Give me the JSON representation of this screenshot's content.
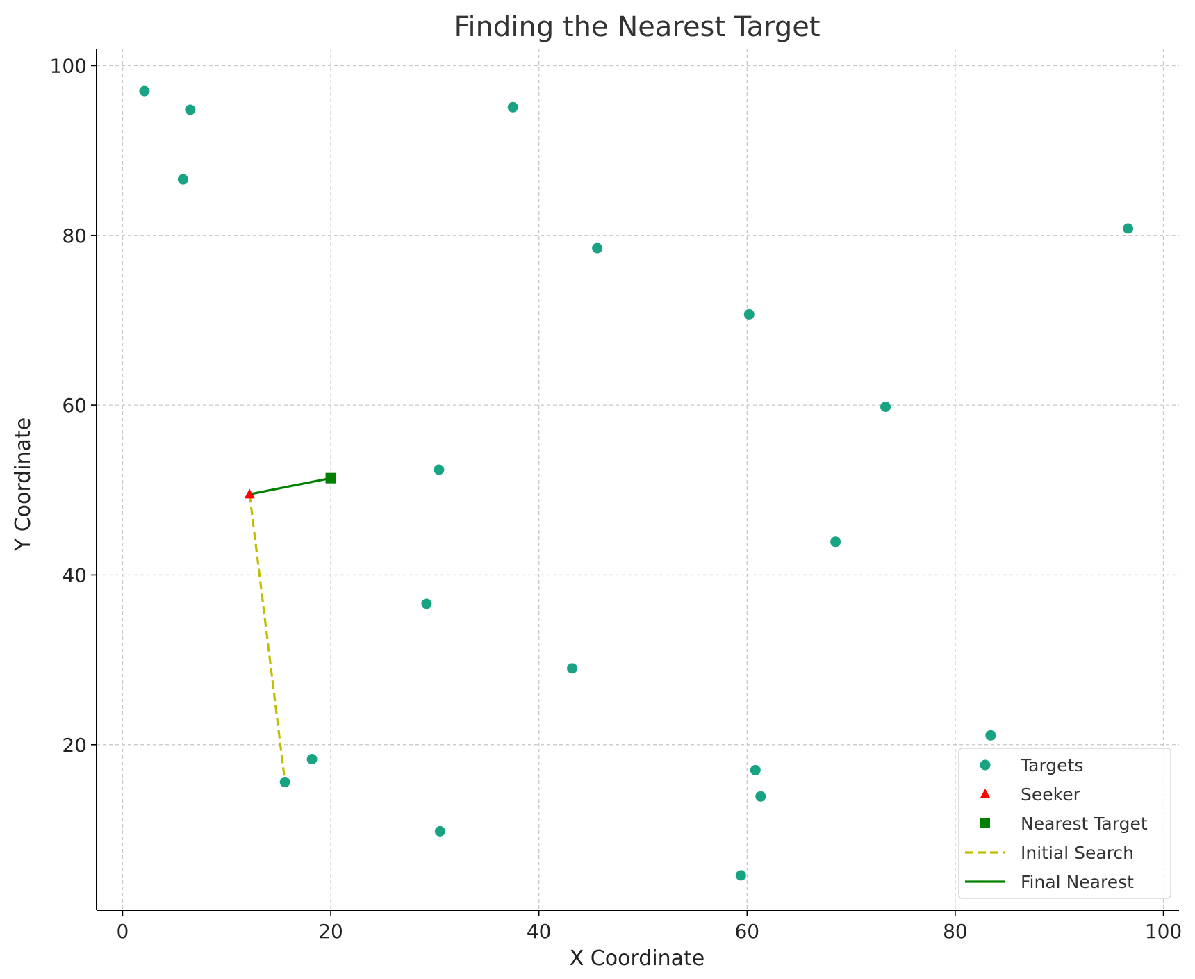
{
  "chart_data": {
    "type": "scatter",
    "title": "Finding the Nearest Target",
    "xlabel": "X Coordinate",
    "ylabel": "Y Coordinate",
    "xlim": [
      -2.5,
      101.5
    ],
    "ylim": [
      0.5,
      102
    ],
    "x_ticks": [
      0,
      20,
      40,
      60,
      80,
      100
    ],
    "y_ticks": [
      20,
      40,
      60,
      80,
      100
    ],
    "x_tick_labels": [
      "0",
      "20",
      "40",
      "60",
      "80",
      "100"
    ],
    "y_tick_labels": [
      "20",
      "40",
      "60",
      "80",
      "100"
    ],
    "grid": true,
    "legend_position": "lower-right",
    "colors": {
      "targets": "#18a383",
      "seeker": "#ff0000",
      "nearest": "#008000",
      "initial_search": "#bfbf00",
      "final_nearest": "#008000",
      "grid": "#c8c8c8"
    },
    "targets": [
      {
        "x": 2.1,
        "y": 97.0
      },
      {
        "x": 6.5,
        "y": 94.8
      },
      {
        "x": 5.8,
        "y": 86.6
      },
      {
        "x": 37.5,
        "y": 95.1
      },
      {
        "x": 45.6,
        "y": 78.5
      },
      {
        "x": 96.6,
        "y": 80.8
      },
      {
        "x": 60.2,
        "y": 70.7
      },
      {
        "x": 73.3,
        "y": 59.8
      },
      {
        "x": 30.4,
        "y": 52.4
      },
      {
        "x": 68.5,
        "y": 43.9
      },
      {
        "x": 29.2,
        "y": 36.6
      },
      {
        "x": 43.2,
        "y": 29.0
      },
      {
        "x": 83.4,
        "y": 21.1
      },
      {
        "x": 18.2,
        "y": 18.3
      },
      {
        "x": 15.6,
        "y": 15.6
      },
      {
        "x": 60.8,
        "y": 17.0
      },
      {
        "x": 61.3,
        "y": 13.9
      },
      {
        "x": 30.5,
        "y": 9.8
      },
      {
        "x": 59.4,
        "y": 4.6
      }
    ],
    "seeker": {
      "x": 12.2,
      "y": 49.5
    },
    "nearest_target": {
      "x": 20.0,
      "y": 51.4
    },
    "initial_search": [
      {
        "x": 12.2,
        "y": 49.5
      },
      {
        "x": 15.6,
        "y": 15.6
      }
    ],
    "final_nearest": [
      {
        "x": 12.2,
        "y": 49.5
      },
      {
        "x": 20.0,
        "y": 51.4
      }
    ],
    "legend": [
      {
        "label": "Targets",
        "marker": "circle"
      },
      {
        "label": "Seeker",
        "marker": "triangle"
      },
      {
        "label": "Nearest Target",
        "marker": "square"
      },
      {
        "label": "Initial Search",
        "marker": "dashed-line"
      },
      {
        "label": "Final Nearest",
        "marker": "solid-line"
      }
    ]
  }
}
